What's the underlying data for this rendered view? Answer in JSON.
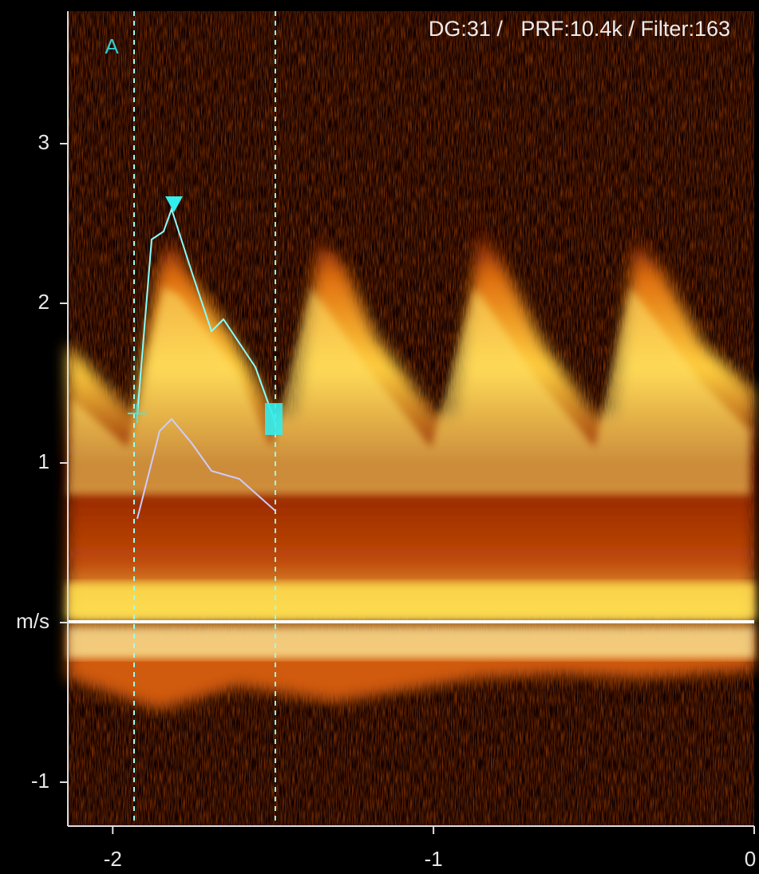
{
  "screen": {
    "label": "A",
    "settings": "DG:31 /   PRF:10.4k / Filter:163",
    "ylim": [
      -1.275,
      3.83
    ],
    "yticks": [
      3,
      2,
      1,
      {
        "value": 0,
        "label": "m/s"
      },
      -1
    ],
    "xlim": [
      -2.14,
      0
    ],
    "xticks": [
      -2,
      -1,
      0
    ]
  }
}
